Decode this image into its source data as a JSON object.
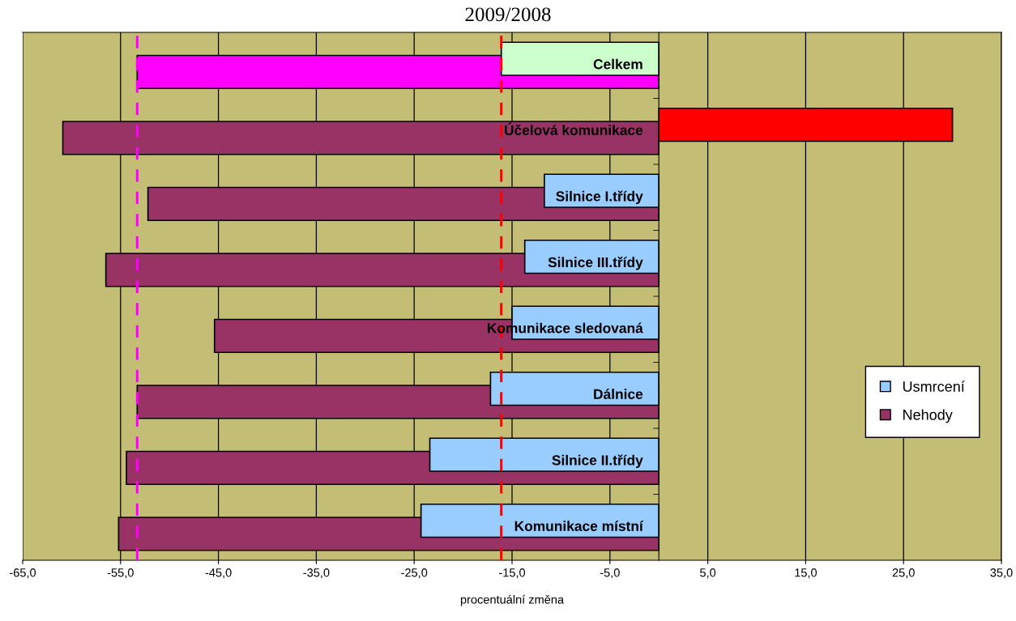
{
  "chart_data": {
    "type": "bar",
    "orientation": "horizontal",
    "title": "2009/2008",
    "xlabel": "procentuální změna",
    "categories": [
      "Celkem",
      "Účelová komunikace",
      "Silnice I.třídy",
      "Silnice III.třídy",
      "Komunikace sledovaná",
      "Dálnice",
      "Silnice II.třídy",
      "Komunikace místní"
    ],
    "series": [
      {
        "name": "Nehody",
        "color": "#993366",
        "colors": [
          "#ff00ff",
          "#993366",
          "#993366",
          "#993366",
          "#993366",
          "#993366",
          "#993366",
          "#993366"
        ],
        "values": [
          -53.3,
          -60.9,
          -52.2,
          -56.5,
          -45.4,
          -53.3,
          -54.4,
          -55.2
        ]
      },
      {
        "name": "Usmrcení",
        "color": "#99ccff",
        "colors": [
          "#ccffcc",
          "#ff0000",
          "#99ccff",
          "#99ccff",
          "#99ccff",
          "#99ccff",
          "#99ccff",
          "#99ccff"
        ],
        "values": [
          -16.1,
          30.0,
          -11.7,
          -13.7,
          -15.0,
          -17.2,
          -23.4,
          -24.3
        ]
      }
    ],
    "xlim": [
      -65,
      35
    ],
    "xticks": [
      {
        "value": -65,
        "label": "-65,0"
      },
      {
        "value": -55,
        "label": "-55,0"
      },
      {
        "value": -45,
        "label": "-45,0"
      },
      {
        "value": -35,
        "label": "-35,0"
      },
      {
        "value": -25,
        "label": "-25,0"
      },
      {
        "value": -15,
        "label": "-15,0"
      },
      {
        "value": -5,
        "label": "-5,0"
      },
      {
        "value": 5,
        "label": "5,0"
      },
      {
        "value": 15,
        "label": "15,0"
      },
      {
        "value": 25,
        "label": "25,0"
      },
      {
        "value": 35,
        "label": "35,0"
      }
    ],
    "ref_lines": [
      {
        "axis": "x",
        "value": -53.3,
        "color": "#ff00ff",
        "line_style": "dashed"
      },
      {
        "axis": "x",
        "value": -16.1,
        "color": "#ff0000",
        "line_style": "dashed"
      }
    ],
    "grid": "x",
    "legend": "right"
  }
}
